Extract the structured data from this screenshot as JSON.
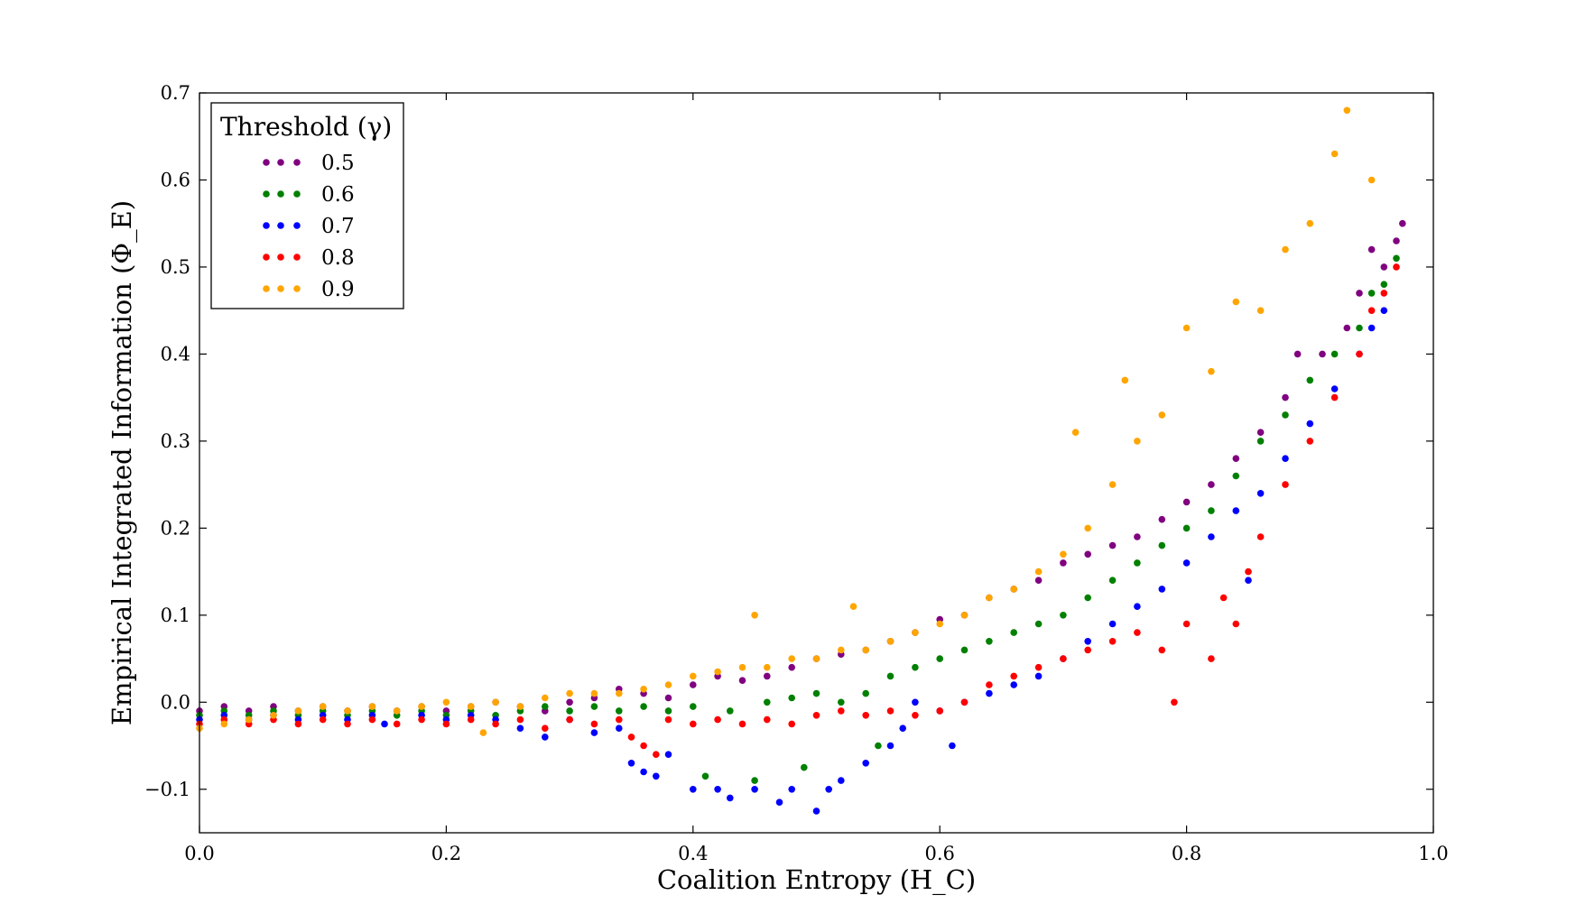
{
  "chart_data": {
    "type": "scatter",
    "title": "",
    "xlabel": "Coalition Entropy (H_C)",
    "ylabel": "Empirical Integrated Information (Φ_E)",
    "xlim": [
      0.0,
      1.0
    ],
    "ylim": [
      -0.15,
      0.7
    ],
    "x_ticks": [
      "0.0",
      "0.2",
      "0.4",
      "0.6",
      "0.8",
      "1.0"
    ],
    "y_ticks": [
      "−0.1",
      "0.0",
      "0.1",
      "0.2",
      "0.3",
      "0.4",
      "0.5",
      "0.6",
      "0.7"
    ],
    "x_tick_values": [
      0.0,
      0.2,
      0.4,
      0.6,
      0.8,
      1.0
    ],
    "y_tick_values": [
      -0.1,
      0.0,
      0.1,
      0.2,
      0.3,
      0.4,
      0.5,
      0.6,
      0.7
    ],
    "grid": false,
    "legend": {
      "title": "Threshold (γ)",
      "placement": "top-left",
      "entries": [
        "0.5",
        "0.6",
        "0.7",
        "0.8",
        "0.9"
      ]
    },
    "series": [
      {
        "name": "0.5",
        "color": "#800080",
        "points": [
          [
            0.0,
            -0.01
          ],
          [
            0.02,
            -0.005
          ],
          [
            0.04,
            -0.01
          ],
          [
            0.06,
            -0.005
          ],
          [
            0.08,
            -0.01
          ],
          [
            0.1,
            -0.005
          ],
          [
            0.12,
            -0.01
          ],
          [
            0.14,
            -0.005
          ],
          [
            0.16,
            -0.01
          ],
          [
            0.18,
            -0.005
          ],
          [
            0.2,
            -0.01
          ],
          [
            0.22,
            -0.005
          ],
          [
            0.24,
            0.0
          ],
          [
            0.26,
            -0.005
          ],
          [
            0.28,
            -0.01
          ],
          [
            0.3,
            0.0
          ],
          [
            0.32,
            0.005
          ],
          [
            0.34,
            0.015
          ],
          [
            0.36,
            0.01
          ],
          [
            0.38,
            0.005
          ],
          [
            0.4,
            0.02
          ],
          [
            0.42,
            0.03
          ],
          [
            0.44,
            0.025
          ],
          [
            0.46,
            0.03
          ],
          [
            0.48,
            0.04
          ],
          [
            0.5,
            0.05
          ],
          [
            0.52,
            0.055
          ],
          [
            0.54,
            0.06
          ],
          [
            0.56,
            0.07
          ],
          [
            0.58,
            0.08
          ],
          [
            0.6,
            0.095
          ],
          [
            0.62,
            0.1
          ],
          [
            0.64,
            0.12
          ],
          [
            0.66,
            0.13
          ],
          [
            0.68,
            0.14
          ],
          [
            0.7,
            0.16
          ],
          [
            0.72,
            0.17
          ],
          [
            0.74,
            0.18
          ],
          [
            0.76,
            0.19
          ],
          [
            0.78,
            0.21
          ],
          [
            0.8,
            0.23
          ],
          [
            0.82,
            0.25
          ],
          [
            0.84,
            0.28
          ],
          [
            0.86,
            0.31
          ],
          [
            0.88,
            0.35
          ],
          [
            0.89,
            0.4
          ],
          [
            0.91,
            0.4
          ],
          [
            0.93,
            0.43
          ],
          [
            0.94,
            0.47
          ],
          [
            0.95,
            0.52
          ],
          [
            0.96,
            0.5
          ],
          [
            0.97,
            0.53
          ],
          [
            0.975,
            0.55
          ]
        ]
      },
      {
        "name": "0.6",
        "color": "#008000",
        "points": [
          [
            0.0,
            -0.015
          ],
          [
            0.02,
            -0.01
          ],
          [
            0.04,
            -0.015
          ],
          [
            0.06,
            -0.01
          ],
          [
            0.08,
            -0.015
          ],
          [
            0.1,
            -0.01
          ],
          [
            0.12,
            -0.015
          ],
          [
            0.14,
            -0.01
          ],
          [
            0.16,
            -0.015
          ],
          [
            0.18,
            -0.01
          ],
          [
            0.2,
            -0.015
          ],
          [
            0.22,
            -0.01
          ],
          [
            0.24,
            -0.015
          ],
          [
            0.26,
            -0.01
          ],
          [
            0.28,
            -0.005
          ],
          [
            0.3,
            -0.01
          ],
          [
            0.32,
            -0.005
          ],
          [
            0.34,
            -0.01
          ],
          [
            0.36,
            -0.005
          ],
          [
            0.38,
            -0.01
          ],
          [
            0.4,
            -0.005
          ],
          [
            0.41,
            -0.085
          ],
          [
            0.43,
            -0.01
          ],
          [
            0.45,
            -0.09
          ],
          [
            0.46,
            0.0
          ],
          [
            0.48,
            0.005
          ],
          [
            0.49,
            -0.075
          ],
          [
            0.5,
            0.01
          ],
          [
            0.52,
            0.0
          ],
          [
            0.54,
            0.01
          ],
          [
            0.55,
            -0.05
          ],
          [
            0.56,
            0.03
          ],
          [
            0.58,
            0.04
          ],
          [
            0.6,
            0.05
          ],
          [
            0.62,
            0.06
          ],
          [
            0.64,
            0.07
          ],
          [
            0.66,
            0.08
          ],
          [
            0.68,
            0.09
          ],
          [
            0.7,
            0.1
          ],
          [
            0.72,
            0.12
          ],
          [
            0.74,
            0.14
          ],
          [
            0.76,
            0.16
          ],
          [
            0.78,
            0.18
          ],
          [
            0.8,
            0.2
          ],
          [
            0.82,
            0.22
          ],
          [
            0.84,
            0.26
          ],
          [
            0.86,
            0.3
          ],
          [
            0.88,
            0.33
          ],
          [
            0.9,
            0.37
          ],
          [
            0.92,
            0.4
          ],
          [
            0.94,
            0.43
          ],
          [
            0.95,
            0.47
          ],
          [
            0.96,
            0.48
          ],
          [
            0.97,
            0.51
          ]
        ]
      },
      {
        "name": "0.7",
        "color": "#0000ff",
        "points": [
          [
            0.0,
            -0.02
          ],
          [
            0.02,
            -0.015
          ],
          [
            0.04,
            -0.02
          ],
          [
            0.06,
            -0.015
          ],
          [
            0.08,
            -0.02
          ],
          [
            0.1,
            -0.015
          ],
          [
            0.12,
            -0.02
          ],
          [
            0.14,
            -0.015
          ],
          [
            0.15,
            -0.025
          ],
          [
            0.18,
            -0.015
          ],
          [
            0.2,
            -0.02
          ],
          [
            0.22,
            -0.015
          ],
          [
            0.24,
            -0.02
          ],
          [
            0.26,
            -0.03
          ],
          [
            0.28,
            -0.04
          ],
          [
            0.3,
            -0.02
          ],
          [
            0.32,
            -0.035
          ],
          [
            0.34,
            -0.03
          ],
          [
            0.35,
            -0.07
          ],
          [
            0.36,
            -0.08
          ],
          [
            0.37,
            -0.085
          ],
          [
            0.38,
            -0.06
          ],
          [
            0.4,
            -0.1
          ],
          [
            0.42,
            -0.1
          ],
          [
            0.43,
            -0.11
          ],
          [
            0.45,
            -0.1
          ],
          [
            0.47,
            -0.115
          ],
          [
            0.48,
            -0.1
          ],
          [
            0.5,
            -0.125
          ],
          [
            0.51,
            -0.1
          ],
          [
            0.52,
            -0.09
          ],
          [
            0.54,
            -0.07
          ],
          [
            0.56,
            -0.05
          ],
          [
            0.57,
            -0.03
          ],
          [
            0.58,
            0.0
          ],
          [
            0.6,
            -0.01
          ],
          [
            0.61,
            -0.05
          ],
          [
            0.62,
            0.0
          ],
          [
            0.64,
            0.01
          ],
          [
            0.66,
            0.02
          ],
          [
            0.68,
            0.03
          ],
          [
            0.7,
            0.05
          ],
          [
            0.72,
            0.07
          ],
          [
            0.74,
            0.09
          ],
          [
            0.76,
            0.11
          ],
          [
            0.78,
            0.13
          ],
          [
            0.8,
            0.16
          ],
          [
            0.82,
            0.19
          ],
          [
            0.84,
            0.22
          ],
          [
            0.85,
            0.14
          ],
          [
            0.86,
            0.24
          ],
          [
            0.88,
            0.28
          ],
          [
            0.9,
            0.32
          ],
          [
            0.92,
            0.36
          ],
          [
            0.94,
            0.4
          ],
          [
            0.95,
            0.43
          ],
          [
            0.96,
            0.45
          ]
        ]
      },
      {
        "name": "0.8",
        "color": "#ff0000",
        "points": [
          [
            0.0,
            -0.025
          ],
          [
            0.02,
            -0.02
          ],
          [
            0.04,
            -0.025
          ],
          [
            0.06,
            -0.02
          ],
          [
            0.08,
            -0.025
          ],
          [
            0.1,
            -0.02
          ],
          [
            0.12,
            -0.025
          ],
          [
            0.14,
            -0.02
          ],
          [
            0.16,
            -0.025
          ],
          [
            0.18,
            -0.02
          ],
          [
            0.2,
            -0.025
          ],
          [
            0.22,
            -0.02
          ],
          [
            0.24,
            -0.025
          ],
          [
            0.26,
            -0.02
          ],
          [
            0.28,
            -0.03
          ],
          [
            0.3,
            -0.02
          ],
          [
            0.32,
            -0.025
          ],
          [
            0.34,
            -0.02
          ],
          [
            0.35,
            -0.04
          ],
          [
            0.36,
            -0.05
          ],
          [
            0.37,
            -0.06
          ],
          [
            0.38,
            -0.02
          ],
          [
            0.4,
            -0.025
          ],
          [
            0.42,
            -0.02
          ],
          [
            0.44,
            -0.025
          ],
          [
            0.46,
            -0.02
          ],
          [
            0.48,
            -0.025
          ],
          [
            0.5,
            -0.015
          ],
          [
            0.52,
            -0.01
          ],
          [
            0.54,
            -0.015
          ],
          [
            0.56,
            -0.01
          ],
          [
            0.58,
            -0.015
          ],
          [
            0.6,
            -0.01
          ],
          [
            0.62,
            0.0
          ],
          [
            0.64,
            0.02
          ],
          [
            0.66,
            0.03
          ],
          [
            0.68,
            0.04
          ],
          [
            0.7,
            0.05
          ],
          [
            0.72,
            0.06
          ],
          [
            0.74,
            0.07
          ],
          [
            0.76,
            0.08
          ],
          [
            0.78,
            0.06
          ],
          [
            0.79,
            0.0
          ],
          [
            0.8,
            0.09
          ],
          [
            0.82,
            0.05
          ],
          [
            0.83,
            0.12
          ],
          [
            0.84,
            0.09
          ],
          [
            0.85,
            0.15
          ],
          [
            0.86,
            0.19
          ],
          [
            0.88,
            0.25
          ],
          [
            0.9,
            0.3
          ],
          [
            0.92,
            0.35
          ],
          [
            0.94,
            0.4
          ],
          [
            0.95,
            0.45
          ],
          [
            0.96,
            0.47
          ],
          [
            0.97,
            0.5
          ]
        ]
      },
      {
        "name": "0.9",
        "color": "#ffa500",
        "points": [
          [
            0.0,
            -0.03
          ],
          [
            0.02,
            -0.025
          ],
          [
            0.04,
            -0.02
          ],
          [
            0.06,
            -0.015
          ],
          [
            0.08,
            -0.01
          ],
          [
            0.1,
            -0.005
          ],
          [
            0.12,
            -0.01
          ],
          [
            0.14,
            -0.005
          ],
          [
            0.16,
            -0.01
          ],
          [
            0.18,
            -0.005
          ],
          [
            0.2,
            0.0
          ],
          [
            0.22,
            -0.005
          ],
          [
            0.23,
            -0.035
          ],
          [
            0.24,
            0.0
          ],
          [
            0.26,
            -0.005
          ],
          [
            0.28,
            0.005
          ],
          [
            0.3,
            0.01
          ],
          [
            0.32,
            0.01
          ],
          [
            0.34,
            0.01
          ],
          [
            0.36,
            0.015
          ],
          [
            0.38,
            0.02
          ],
          [
            0.4,
            0.03
          ],
          [
            0.42,
            0.035
          ],
          [
            0.44,
            0.04
          ],
          [
            0.45,
            0.1
          ],
          [
            0.46,
            0.04
          ],
          [
            0.48,
            0.05
          ],
          [
            0.5,
            0.05
          ],
          [
            0.52,
            0.06
          ],
          [
            0.53,
            0.11
          ],
          [
            0.54,
            0.06
          ],
          [
            0.56,
            0.07
          ],
          [
            0.58,
            0.08
          ],
          [
            0.6,
            0.09
          ],
          [
            0.62,
            0.1
          ],
          [
            0.64,
            0.12
          ],
          [
            0.66,
            0.13
          ],
          [
            0.68,
            0.15
          ],
          [
            0.7,
            0.17
          ],
          [
            0.71,
            0.31
          ],
          [
            0.72,
            0.2
          ],
          [
            0.74,
            0.25
          ],
          [
            0.75,
            0.37
          ],
          [
            0.76,
            0.3
          ],
          [
            0.78,
            0.33
          ],
          [
            0.8,
            0.43
          ],
          [
            0.82,
            0.38
          ],
          [
            0.84,
            0.46
          ],
          [
            0.86,
            0.45
          ],
          [
            0.88,
            0.52
          ],
          [
            0.9,
            0.55
          ],
          [
            0.92,
            0.63
          ],
          [
            0.93,
            0.68
          ],
          [
            0.95,
            0.6
          ]
        ]
      }
    ]
  }
}
